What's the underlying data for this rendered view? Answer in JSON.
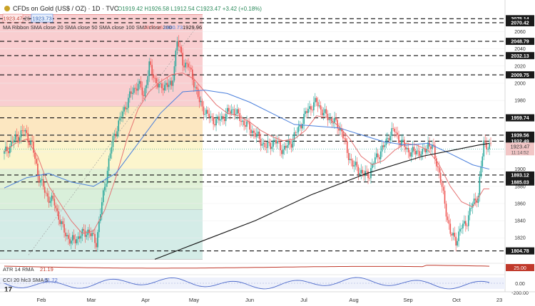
{
  "header": {
    "title": "CFDs on Gold (US$ / OZ) · 1D · TVC",
    "ohlc_text": "O1919.42 H1926.58 L1912.54 C1923.47 +3.42 (+0.18%)",
    "sell_price": "1923.47",
    "buy_price": "1923.73",
    "spread": "26",
    "ma_label": "MA Ribbon SMA close 20 SMA close 50 SMA close 100 SMA close 200",
    "ma_values": [
      "1877.16",
      "1900.73",
      "1929.96"
    ],
    "ma_colors": [
      "#e57373",
      "#4a7fdc",
      "#111111"
    ]
  },
  "chart_data": {
    "type": "candlestick",
    "ylim": [
      1792,
      2082
    ],
    "x_months": [
      "Feb",
      "Mar",
      "Apr",
      "May",
      "Jun",
      "Jul",
      "Aug",
      "Sep",
      "Oct",
      "23"
    ],
    "y_ticks": [
      1820,
      1840,
      1860,
      1880,
      1900,
      1920,
      1940,
      1960,
      1980,
      2000,
      2020,
      2040,
      2060
    ],
    "levels": [
      2075.14,
      2070.42,
      2048.79,
      2032.13,
      2009.75,
      1959.74,
      1939.56,
      1932.49,
      1893.12,
      1885.03,
      1804.78
    ],
    "current_price": 1923.47,
    "current_price_label": "1923.47",
    "countdown": "11:14:52",
    "fib_zones": [
      {
        "from": 1973,
        "to": 2080,
        "color": "#f8c6c8"
      },
      {
        "from": 1932,
        "to": 1973,
        "color": "#fbe3b6"
      },
      {
        "from": 1900,
        "to": 1932,
        "color": "#fbf3c4"
      },
      {
        "from": 1877,
        "to": 1900,
        "color": "#dcefcf"
      },
      {
        "from": 1853,
        "to": 1877,
        "color": "#d2ecd3"
      },
      {
        "from": 1795,
        "to": 1853,
        "color": "#cde9e3"
      }
    ],
    "close_path": [
      [
        0,
        1918
      ],
      [
        6,
        1932
      ],
      [
        14,
        1945
      ],
      [
        20,
        1928
      ],
      [
        24,
        1895
      ],
      [
        30,
        1870
      ],
      [
        36,
        1860
      ],
      [
        42,
        1830
      ],
      [
        48,
        1815
      ],
      [
        54,
        1822
      ],
      [
        60,
        1828
      ],
      [
        66,
        1815
      ],
      [
        70,
        1860
      ],
      [
        74,
        1900
      ],
      [
        78,
        1935
      ],
      [
        84,
        1962
      ],
      [
        90,
        1985
      ],
      [
        96,
        2000
      ],
      [
        100,
        1985
      ],
      [
        104,
        2020
      ],
      [
        108,
        2005
      ],
      [
        112,
        1993
      ],
      [
        116,
        2000
      ],
      [
        120,
        1995
      ],
      [
        124,
        2050
      ],
      [
        128,
        2025
      ],
      [
        132,
        2020
      ],
      [
        136,
        2002
      ],
      [
        140,
        1978
      ],
      [
        146,
        1962
      ],
      [
        152,
        1955
      ],
      [
        158,
        1962
      ],
      [
        164,
        1970
      ],
      [
        170,
        1957
      ],
      [
        176,
        1948
      ],
      [
        182,
        1937
      ],
      [
        188,
        1925
      ],
      [
        194,
        1933
      ],
      [
        200,
        1922
      ],
      [
        206,
        1932
      ],
      [
        212,
        1950
      ],
      [
        218,
        1970
      ],
      [
        224,
        1978
      ],
      [
        230,
        1963
      ],
      [
        236,
        1956
      ],
      [
        242,
        1945
      ],
      [
        246,
        1920
      ],
      [
        250,
        1905
      ],
      [
        254,
        1900
      ],
      [
        258,
        1893
      ],
      [
        262,
        1895
      ],
      [
        266,
        1912
      ],
      [
        272,
        1925
      ],
      [
        276,
        1940
      ],
      [
        280,
        1945
      ],
      [
        284,
        1932
      ],
      [
        288,
        1925
      ],
      [
        292,
        1918
      ],
      [
        296,
        1922
      ],
      [
        300,
        1917
      ],
      [
        304,
        1930
      ],
      [
        308,
        1922
      ],
      [
        312,
        1895
      ],
      [
        316,
        1860
      ],
      [
        320,
        1825
      ],
      [
        324,
        1817
      ],
      [
        328,
        1832
      ],
      [
        332,
        1840
      ],
      [
        336,
        1860
      ],
      [
        340,
        1870
      ],
      [
        344,
        1932
      ],
      [
        348,
        1925
      ]
    ],
    "sma20_path": [
      [
        0,
        1920
      ],
      [
        8,
        1930
      ],
      [
        16,
        1935
      ],
      [
        24,
        1915
      ],
      [
        32,
        1880
      ],
      [
        40,
        1860
      ],
      [
        48,
        1840
      ],
      [
        56,
        1825
      ],
      [
        64,
        1828
      ],
      [
        72,
        1852
      ],
      [
        80,
        1890
      ],
      [
        88,
        1935
      ],
      [
        96,
        1970
      ],
      [
        104,
        1990
      ],
      [
        112,
        2002
      ],
      [
        120,
        2010
      ],
      [
        128,
        2012
      ],
      [
        136,
        2005
      ],
      [
        144,
        1990
      ],
      [
        152,
        1975
      ],
      [
        160,
        1965
      ],
      [
        168,
        1962
      ],
      [
        176,
        1955
      ],
      [
        184,
        1945
      ],
      [
        192,
        1938
      ],
      [
        200,
        1933
      ],
      [
        208,
        1935
      ],
      [
        216,
        1945
      ],
      [
        224,
        1962
      ],
      [
        232,
        1960
      ],
      [
        240,
        1950
      ],
      [
        248,
        1935
      ],
      [
        256,
        1915
      ],
      [
        264,
        1905
      ],
      [
        272,
        1910
      ],
      [
        280,
        1922
      ],
      [
        288,
        1930
      ],
      [
        296,
        1928
      ],
      [
        304,
        1922
      ],
      [
        312,
        1905
      ],
      [
        320,
        1880
      ],
      [
        328,
        1862
      ],
      [
        336,
        1856
      ],
      [
        344,
        1877
      ],
      [
        348,
        1877
      ]
    ],
    "sma50_path": [
      [
        0,
        1878
      ],
      [
        16,
        1890
      ],
      [
        32,
        1895
      ],
      [
        48,
        1885
      ],
      [
        64,
        1880
      ],
      [
        80,
        1895
      ],
      [
        96,
        1930
      ],
      [
        112,
        1965
      ],
      [
        128,
        1990
      ],
      [
        144,
        1992
      ],
      [
        160,
        1988
      ],
      [
        176,
        1978
      ],
      [
        192,
        1965
      ],
      [
        208,
        1952
      ],
      [
        224,
        1950
      ],
      [
        240,
        1948
      ],
      [
        256,
        1940
      ],
      [
        272,
        1932
      ],
      [
        288,
        1928
      ],
      [
        304,
        1930
      ],
      [
        320,
        1918
      ],
      [
        336,
        1905
      ],
      [
        348,
        1900
      ]
    ],
    "sma200_path": [
      [
        108,
        1795
      ],
      [
        140,
        1815
      ],
      [
        180,
        1840
      ],
      [
        220,
        1870
      ],
      [
        260,
        1895
      ],
      [
        300,
        1915
      ],
      [
        340,
        1928
      ],
      [
        348,
        1930
      ]
    ],
    "atr": {
      "label": "ATR 14 RMA",
      "value": "21.19",
      "ticks": [
        "25.00",
        "0.00"
      ]
    },
    "cci": {
      "label": "CCI 20 hlc3 SMA 5",
      "value": "81.72",
      "ticks": [
        "0.00",
        "-200.00"
      ]
    }
  }
}
